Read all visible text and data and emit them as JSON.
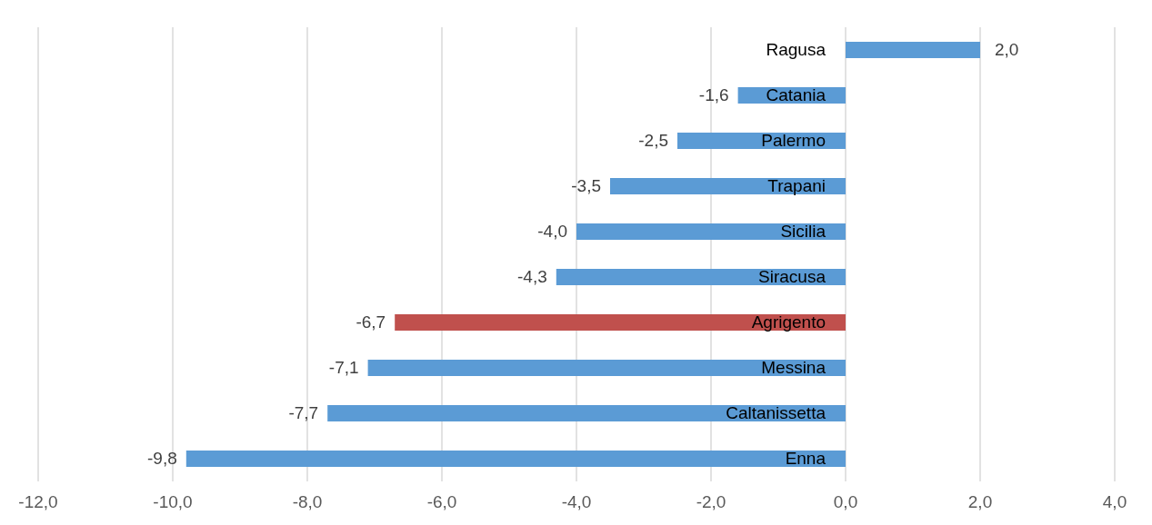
{
  "chart_data": {
    "type": "bar",
    "orientation": "horizontal",
    "categories": [
      "Ragusa",
      "Catania",
      "Palermo",
      "Trapani",
      "Sicilia",
      "Siracusa",
      "Agrigento",
      "Messina",
      "Caltanissetta",
      "Enna"
    ],
    "values": [
      2.0,
      -1.6,
      -2.5,
      -3.5,
      -4.0,
      -4.3,
      -6.7,
      -7.1,
      -7.7,
      -9.8
    ],
    "colors": [
      "#5b9bd5",
      "#5b9bd5",
      "#5b9bd5",
      "#5b9bd5",
      "#5b9bd5",
      "#5b9bd5",
      "#c0504d",
      "#5b9bd5",
      "#5b9bd5",
      "#5b9bd5"
    ],
    "value_labels": [
      "2,0",
      "-1,6",
      "-2,5",
      "-3,5",
      "-4,0",
      "-4,3",
      "-6,7",
      "-7,1",
      "-7,7",
      "-9,8"
    ],
    "xlim": [
      -12,
      4
    ],
    "xticks": [
      {
        "value": -12,
        "label": "-12,0"
      },
      {
        "value": -10,
        "label": "-10,0"
      },
      {
        "value": -8,
        "label": "-8,0"
      },
      {
        "value": -6,
        "label": "-6,0"
      },
      {
        "value": -4,
        "label": "-4,0"
      },
      {
        "value": -2,
        "label": "-2,0"
      },
      {
        "value": 0,
        "label": "0,0"
      },
      {
        "value": 2,
        "label": "2,0"
      },
      {
        "value": 4,
        "label": "4,0"
      }
    ],
    "grid": "x"
  }
}
